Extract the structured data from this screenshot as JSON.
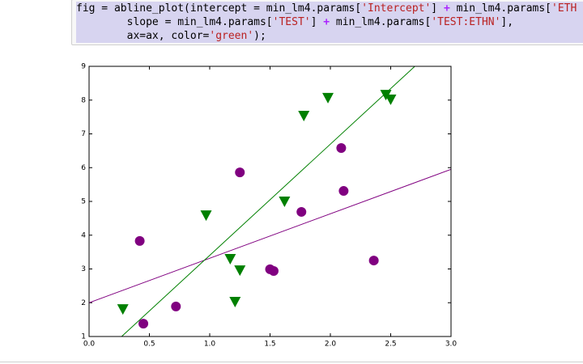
{
  "code": {
    "lines": [
      [
        "fig = abline_plot(intercept = min_lm4.params[",
        "'Intercept'",
        "] ",
        "+",
        " min_lm4.params[",
        "'ETH"
      ],
      [
        "        slope = min_lm4.params[",
        "'TEST'",
        "] ",
        "+",
        " min_lm4.params[",
        "'TEST:ETHN'",
        "],"
      ],
      [
        "        ax=ax, color=",
        "'green'",
        ");"
      ]
    ]
  },
  "chart_data": {
    "type": "scatter",
    "xlim": [
      0,
      3
    ],
    "ylim": [
      1,
      9
    ],
    "xticks": [
      {
        "value": 0,
        "label": "0.0"
      },
      {
        "value": 0.5,
        "label": "0.5"
      },
      {
        "value": 1,
        "label": "1.0"
      },
      {
        "value": 1.5,
        "label": "1.5"
      },
      {
        "value": 2,
        "label": "2.0"
      },
      {
        "value": 2.5,
        "label": "2.5"
      },
      {
        "value": 3,
        "label": "3.0"
      }
    ],
    "yticks": [
      1,
      2,
      3,
      4,
      5,
      6,
      7,
      8,
      9
    ],
    "series": [
      {
        "color": "purple",
        "marker": "circle",
        "x": [
          0.42,
          0.45,
          0.72,
          1.25,
          1.5,
          1.53,
          1.76,
          2.09,
          2.11,
          2.36
        ],
        "y": [
          3.83,
          1.38,
          1.89,
          5.86,
          2.99,
          2.94,
          4.69,
          6.58,
          5.31,
          3.25
        ]
      },
      {
        "color": "green",
        "marker": "triangle-down",
        "x": [
          0.28,
          0.97,
          1.17,
          1.21,
          1.25,
          1.62,
          1.78,
          1.98,
          2.46,
          2.5
        ],
        "y": [
          1.81,
          4.59,
          3.3,
          2.03,
          2.96,
          5.0,
          7.54,
          8.07,
          8.16,
          8.02
        ]
      }
    ],
    "lines": [
      {
        "color": "purple",
        "x": [
          0,
          3
        ],
        "y": [
          2,
          5.95
        ]
      },
      {
        "color": "green",
        "x": [
          0.27,
          2.7
        ],
        "y": [
          1,
          9
        ]
      }
    ]
  }
}
